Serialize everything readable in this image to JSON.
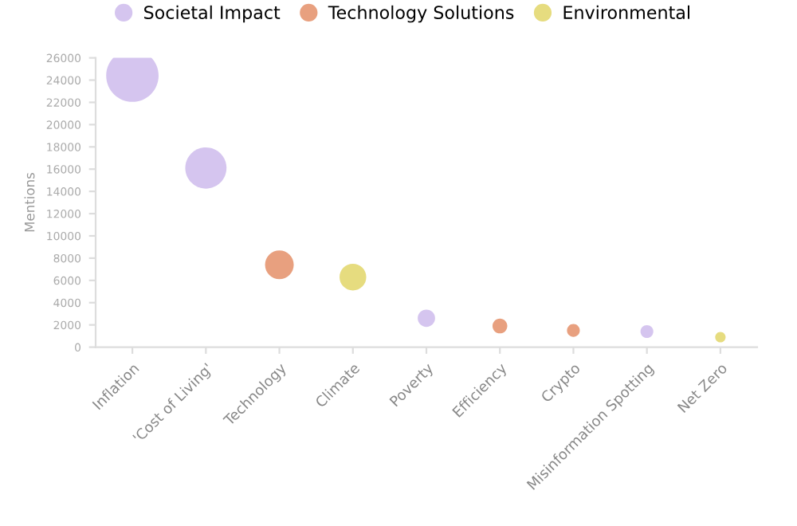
{
  "chart_data": {
    "type": "bubble",
    "ylabel": "Mentions",
    "categories": [
      "Inflation",
      "'Cost of Living'",
      "Technology",
      "Climate",
      "Poverty",
      "Efficiency",
      "Crypto",
      "Misinformation Spotting",
      "Net Zero"
    ],
    "series": [
      {
        "name": "Societal Impact",
        "color": "#d5c5ef",
        "values": [
          24400,
          16100,
          null,
          null,
          2600,
          null,
          null,
          1400,
          null
        ],
        "sizes": [
          1,
          0.62,
          null,
          null,
          0.11,
          null,
          null,
          0.06,
          null
        ]
      },
      {
        "name": "Technology Solutions",
        "color": "#e8a07f",
        "values": [
          null,
          null,
          7400,
          null,
          null,
          1900,
          1500,
          null,
          null
        ],
        "sizes": [
          null,
          null,
          0.3,
          null,
          null,
          0.08,
          0.06,
          null,
          null
        ]
      },
      {
        "name": "Environmental",
        "color": "#e6dc7f",
        "values": [
          null,
          null,
          null,
          6300,
          null,
          null,
          null,
          null,
          900
        ],
        "sizes": [
          null,
          null,
          null,
          0.26,
          null,
          null,
          null,
          null,
          0.04
        ]
      }
    ],
    "ylim": [
      0,
      26000
    ],
    "yticks": [
      0,
      2000,
      4000,
      6000,
      8000,
      10000,
      12000,
      14000,
      16000,
      18000,
      20000,
      22000,
      24000,
      26000
    ],
    "grid": false,
    "legend": "top"
  }
}
